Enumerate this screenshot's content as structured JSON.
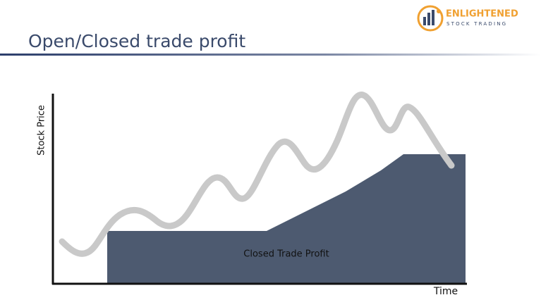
{
  "logo": {
    "name": "ENLIGHTENED",
    "tagline": "STOCK TRADING"
  },
  "header": {
    "title": "Open/Closed trade profit"
  },
  "diagram": {
    "y_label": "Stock Price",
    "x_label": "Time",
    "area_label": "Closed Trade Profit"
  }
}
